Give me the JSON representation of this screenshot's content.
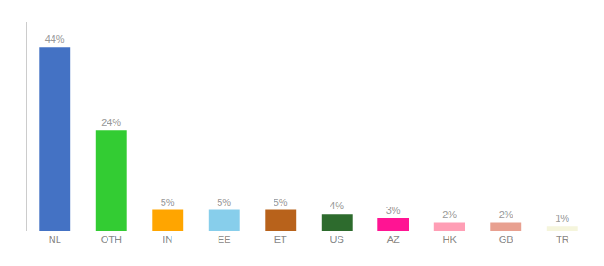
{
  "chart_data": {
    "type": "bar",
    "categories": [
      "NL",
      "OTH",
      "IN",
      "EE",
      "ET",
      "US",
      "AZ",
      "HK",
      "GB",
      "TR"
    ],
    "values": [
      44,
      24,
      5,
      5,
      5,
      4,
      3,
      2,
      2,
      1
    ],
    "value_labels": [
      "44%",
      "24%",
      "5%",
      "5%",
      "5%",
      "4%",
      "3%",
      "2%",
      "2%",
      "1%"
    ],
    "colors": [
      "#4472C4",
      "#33CC33",
      "#FFA500",
      "#87CEEB",
      "#B8621B",
      "#2D6B2D",
      "#FF1493",
      "#FF9EB5",
      "#E8A090",
      "#F5F5DC"
    ],
    "ylim": [
      0,
      50
    ],
    "grid": false,
    "data_labels": true,
    "tick_labels": "x"
  }
}
